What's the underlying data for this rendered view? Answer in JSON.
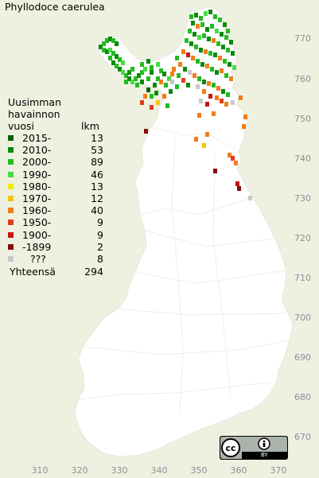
{
  "title": "Phyllodoce caerulea",
  "legend": {
    "heading_lines": [
      "Uusimman",
      "havainnon",
      "vuosi"
    ],
    "count_header": "lkm",
    "items": [
      {
        "label": "2015-",
        "count": "13",
        "color": "#006400"
      },
      {
        "label": "2010-",
        "count": "53",
        "color": "#0b8a0b"
      },
      {
        "label": "2000-",
        "count": "89",
        "color": "#22bb22"
      },
      {
        "label": "1990-",
        "count": "46",
        "color": "#44dd44"
      },
      {
        "label": "1980-",
        "count": "13",
        "color": "#eded00"
      },
      {
        "label": "1970-",
        "count": "12",
        "color": "#f4c400"
      },
      {
        "label": "1960-",
        "count": "40",
        "color": "#f07d1a"
      },
      {
        "label": "1950-",
        "count": "9",
        "color": "#e43c1b"
      },
      {
        "label": "1900-",
        "count": "9",
        "color": "#c81414"
      },
      {
        "label": "-1899",
        "count": "2",
        "color": "#8b0a0a"
      },
      {
        "label": "???",
        "count": "8",
        "color": "#c8c8c8"
      }
    ],
    "total_label": "Yhteensä",
    "total_count": "294"
  },
  "y_ticks": [
    "770",
    "760",
    "750",
    "740",
    "730",
    "720",
    "710",
    "700",
    "690",
    "680",
    "670"
  ],
  "x_ticks": [
    "310",
    "320",
    "330",
    "340",
    "350",
    "360",
    "370"
  ],
  "license": "BY"
}
